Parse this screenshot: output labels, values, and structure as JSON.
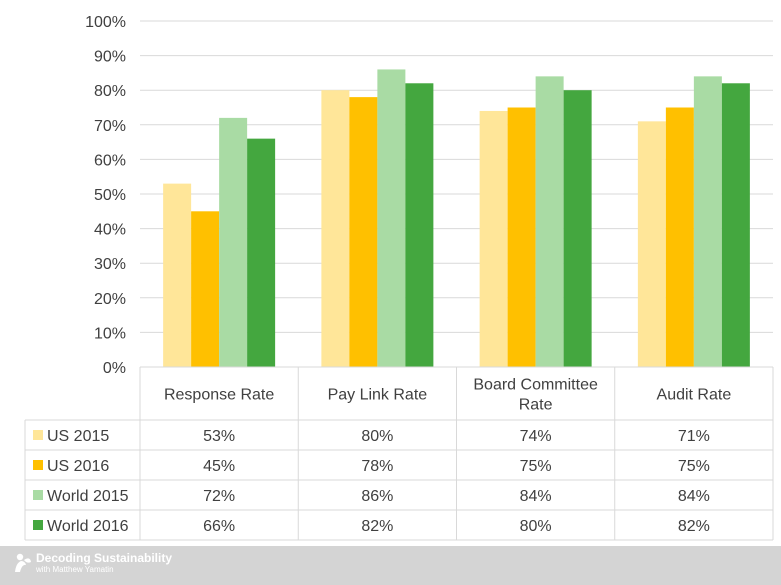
{
  "chart_data": {
    "type": "bar",
    "categories": [
      "Response Rate",
      "Pay Link Rate",
      "Board Committee Rate",
      "Audit Rate"
    ],
    "category_lines": [
      [
        "Response Rate"
      ],
      [
        "Pay Link Rate"
      ],
      [
        "Board Committee",
        "Rate"
      ],
      [
        "Audit Rate"
      ]
    ],
    "series": [
      {
        "name": "US 2015",
        "values": [
          53,
          80,
          74,
          71
        ],
        "labels": [
          "53%",
          "80%",
          "74%",
          "71%"
        ],
        "color": "#ffe699"
      },
      {
        "name": "US 2016",
        "values": [
          45,
          78,
          75,
          75
        ],
        "labels": [
          "45%",
          "78%",
          "75%",
          "75%"
        ],
        "color": "#ffc000"
      },
      {
        "name": "World 2015",
        "values": [
          72,
          86,
          84,
          84
        ],
        "labels": [
          "72%",
          "86%",
          "84%",
          "84%"
        ],
        "color": "#a9dba4"
      },
      {
        "name": "World 2016",
        "values": [
          66,
          82,
          80,
          82
        ],
        "labels": [
          "66%",
          "82%",
          "80%",
          "82%"
        ],
        "color": "#44a73f"
      }
    ],
    "ylim": [
      0,
      100
    ],
    "yticks": [
      "0%",
      "10%",
      "20%",
      "30%",
      "40%",
      "50%",
      "60%",
      "70%",
      "80%",
      "90%",
      "100%"
    ],
    "grid": true,
    "legend": "data-table",
    "grid_color": "#d9d9d9"
  },
  "footer": {
    "title": "Decoding Sustainability",
    "subtitle": "with Matthew Yamatin"
  }
}
